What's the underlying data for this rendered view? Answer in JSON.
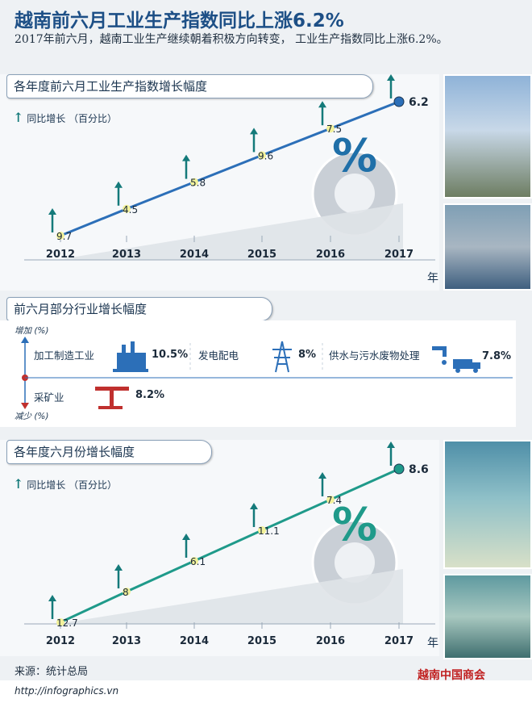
{
  "title": "越南前六月工业生产指数同比上涨6.2%",
  "subtitle": "2017年前六月，越南工业生产继续朝着积极方向转变， 工业生产指数同比上涨6.2%。",
  "section1": {
    "heading": "各年度前六月工业生产指数增长幅度",
    "legend": "同比增长 （百分比）"
  },
  "section2": {
    "heading": "前六月部分行业增长幅度",
    "axis_up": "增加 (%)",
    "axis_down": "减少 (%)",
    "items": [
      {
        "label": "加工制造工业",
        "value": "10.5%",
        "icon": "factory-icon"
      },
      {
        "label": "发电配电",
        "value": "8%",
        "icon": "power-tower-icon"
      },
      {
        "label": "供水与污水废物处理",
        "value": "7.8%",
        "icon": "water-truck-icon"
      },
      {
        "label": "采矿业",
        "value": "8.2%",
        "icon": "oil-pump-icon"
      }
    ]
  },
  "section3": {
    "heading": "各年度六月份增长幅度",
    "legend": "同比增长 （百分比）"
  },
  "source": "来源：统计总局",
  "url": "http://infographics.vn",
  "watermark": "越南中国商会",
  "year_unit": "年",
  "colors": {
    "line1": "#2c6fb8",
    "line2": "#1f9a8a",
    "accent": "#147a7a",
    "title": "#1d4f86",
    "mining": "#c0302e"
  },
  "chart_data": [
    {
      "type": "line",
      "categories": [
        "2012",
        "2013",
        "2014",
        "2015",
        "2016",
        "2017"
      ],
      "values": [
        9.7,
        4.5,
        5.8,
        9.6,
        7.5,
        6.2
      ],
      "labels": [
        "9.7",
        "4.5",
        "5.8",
        "9.6",
        "7.5",
        "6.2"
      ]
    },
    {
      "type": "line",
      "categories": [
        "2012",
        "2013",
        "2014",
        "2015",
        "2016",
        "2017"
      ],
      "values": [
        12.7,
        8,
        6.1,
        11.1,
        7.4,
        8.6
      ],
      "labels": [
        "12.7",
        "8",
        "6.1",
        "11.1",
        "7.4",
        "8.6"
      ]
    }
  ]
}
